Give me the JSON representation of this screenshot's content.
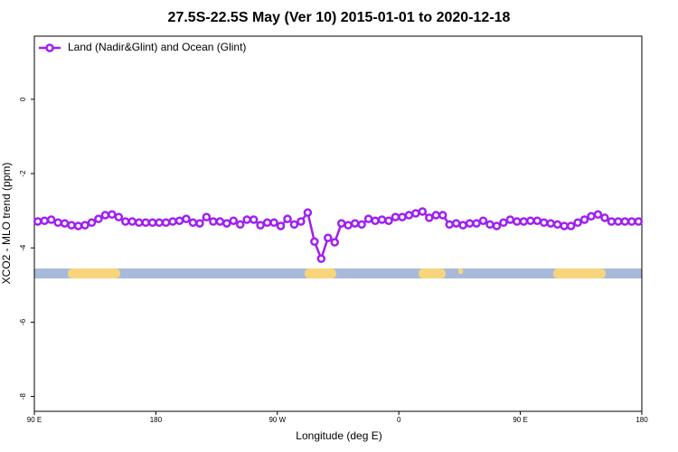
{
  "chart_data": {
    "type": "line",
    "title": "27.5S-22.5S May (Ver 10)   2015-01-01 to 2020-12-18",
    "x_label": "Longitude (deg E)",
    "y_label": "XCO2 - MLO trend (ppm)",
    "xlim": [
      90,
      540
    ],
    "ylim": [
      -8.4,
      1.7
    ],
    "xticks": [
      {
        "value": 90,
        "label": "90 E"
      },
      180,
      {
        "value": 270,
        "label": "90 W"
      },
      {
        "value": 360,
        "label": "0"
      },
      {
        "value": 450,
        "label": "90 E"
      },
      {
        "value": 540,
        "label": "180"
      }
    ],
    "yticks": [
      0,
      -2,
      -4,
      -6,
      -8
    ],
    "legend": "top-left",
    "series": [
      {
        "name": "Land (Nadir&Glint) and Ocean (Glint)",
        "color": "#a020f0",
        "x": [
          92.5,
          97.5,
          102.5,
          107.5,
          112.5,
          117.5,
          122.5,
          127.5,
          132.5,
          137.5,
          142.5,
          147.5,
          152.5,
          157.5,
          162.5,
          167.5,
          172.5,
          177.5,
          182.5,
          187.5,
          192.5,
          197.5,
          202.5,
          207.5,
          212.5,
          217.5,
          222.5,
          227.5,
          232.5,
          237.5,
          242.5,
          247.5,
          252.5,
          257.5,
          262.5,
          267.5,
          272.5,
          277.5,
          282.5,
          287.5,
          292.5,
          297.5,
          302.5,
          307.5,
          312.5,
          317.5,
          322.5,
          327.5,
          332.5,
          337.5,
          342.5,
          347.5,
          352.5,
          357.5,
          362.5,
          367.5,
          372.5,
          377.5,
          382.5,
          387.5,
          392.5,
          397.5,
          402.5,
          407.5,
          412.5,
          417.5,
          422.5,
          427.5,
          432.5,
          437.5,
          442.5,
          447.5,
          452.5,
          457.5,
          462.5,
          467.5,
          472.5,
          477.5,
          482.5,
          487.5,
          492.5,
          497.5,
          502.5,
          507.5,
          512.5,
          517.5,
          522.5,
          527.5,
          532.5,
          537.5
        ],
        "values": [
          -3.29,
          -3.27,
          -3.24,
          -3.32,
          -3.34,
          -3.39,
          -3.41,
          -3.39,
          -3.32,
          -3.22,
          -3.12,
          -3.1,
          -3.17,
          -3.29,
          -3.29,
          -3.32,
          -3.32,
          -3.32,
          -3.32,
          -3.32,
          -3.29,
          -3.27,
          -3.22,
          -3.32,
          -3.34,
          -3.17,
          -3.29,
          -3.29,
          -3.34,
          -3.27,
          -3.37,
          -3.24,
          -3.24,
          -3.39,
          -3.32,
          -3.32,
          -3.41,
          -3.22,
          -3.37,
          -3.29,
          -3.05,
          -3.83,
          -4.29,
          -3.73,
          -3.85,
          -3.34,
          -3.39,
          -3.34,
          -3.37,
          -3.22,
          -3.27,
          -3.24,
          -3.27,
          -3.17,
          -3.17,
          -3.12,
          -3.07,
          -3.02,
          -3.19,
          -3.12,
          -3.12,
          -3.37,
          -3.34,
          -3.39,
          -3.34,
          -3.34,
          -3.27,
          -3.37,
          -3.41,
          -3.32,
          -3.24,
          -3.29,
          -3.29,
          -3.27,
          -3.27,
          -3.32,
          -3.34,
          -3.37,
          -3.41,
          -3.41,
          -3.32,
          -3.24,
          -3.15,
          -3.1,
          -3.19,
          -3.29,
          -3.29,
          -3.29,
          -3.29,
          -3.29
        ]
      }
    ]
  }
}
